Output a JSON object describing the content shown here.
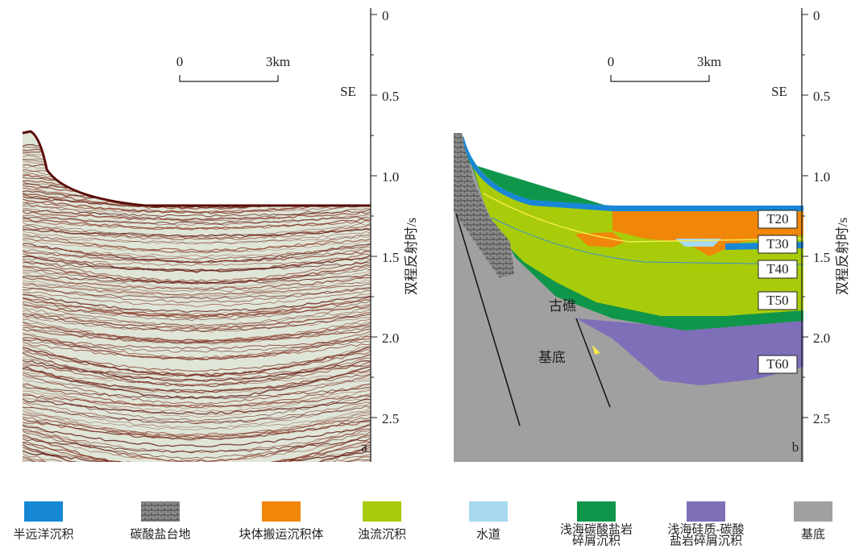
{
  "panels": [
    {
      "label": "a",
      "scale": {
        "start": "0",
        "end": "3km"
      },
      "direction": "SE"
    },
    {
      "label": "b",
      "scale": {
        "start": "0",
        "end": "3km"
      },
      "direction": "SE",
      "horizons": [
        "T20",
        "T30",
        "T40",
        "T50",
        "T60"
      ],
      "annotations": {
        "basement": "基底",
        "reef": "古礁"
      }
    }
  ],
  "axis": {
    "title": "双程反射时/s",
    "ticks": [
      "0",
      "0.5",
      "1.0",
      "1.5",
      "2.0",
      "2.5"
    ]
  },
  "legend": [
    {
      "lines": [
        "半远洋沉积"
      ]
    },
    {
      "lines": [
        "碳酸盐台地"
      ]
    },
    {
      "lines": [
        "块体搬运沉积体"
      ]
    },
    {
      "lines": [
        "浊流沉积"
      ]
    },
    {
      "lines": [
        "水道"
      ]
    },
    {
      "lines": [
        "浅海碳酸盐岩",
        "碎屑沉积"
      ]
    },
    {
      "lines": [
        "浅海硅质-碳酸",
        "盐岩碎屑沉积"
      ]
    },
    {
      "lines": [
        "基底"
      ]
    }
  ]
}
